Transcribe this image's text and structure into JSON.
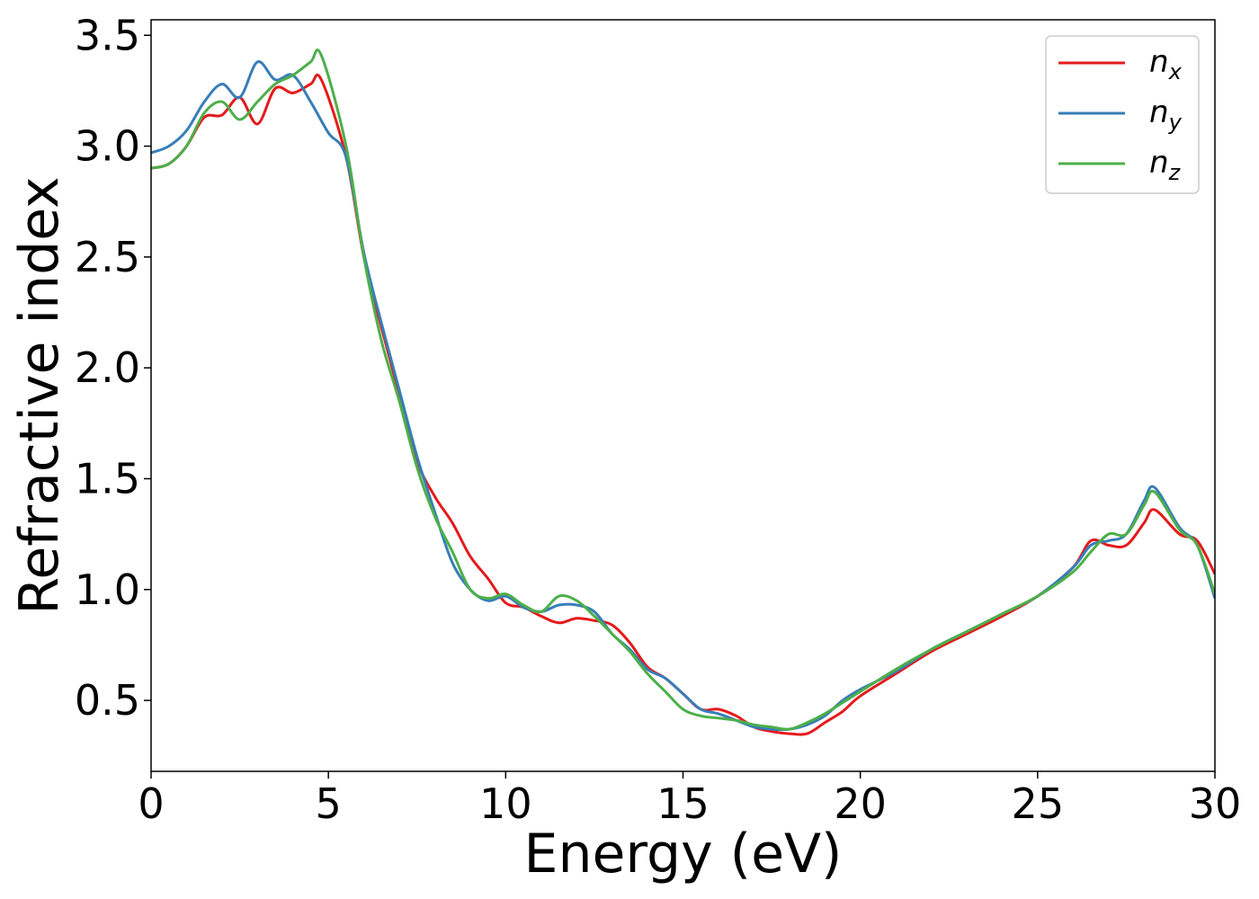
{
  "chart_data": {
    "type": "line",
    "title": "",
    "xlabel": "Energy (eV)",
    "ylabel": "Refractive index",
    "xlim": [
      0,
      30
    ],
    "ylim": [
      0.18,
      3.57
    ],
    "xticks": [
      0,
      5,
      10,
      15,
      20,
      25,
      30
    ],
    "yticks": [
      0.5,
      1.0,
      1.5,
      2.0,
      2.5,
      3.0,
      3.5
    ],
    "xtick_labels": [
      "0",
      "5",
      "10",
      "15",
      "20",
      "25",
      "30"
    ],
    "ytick_labels": [
      "0.5",
      "1.0",
      "1.5",
      "2.0",
      "2.5",
      "3.0",
      "3.5"
    ],
    "grid": false,
    "legend_position": "top-right",
    "series": [
      {
        "name": "n",
        "subscript": "x",
        "color": "#e41a1c",
        "points": [
          [
            0,
            2.9
          ],
          [
            0.5,
            2.92
          ],
          [
            1,
            3.0
          ],
          [
            1.5,
            3.13
          ],
          [
            2,
            3.14
          ],
          [
            2.5,
            3.22
          ],
          [
            3,
            3.1
          ],
          [
            3.5,
            3.26
          ],
          [
            4,
            3.24
          ],
          [
            4.5,
            3.28
          ],
          [
            4.8,
            3.3
          ],
          [
            5.5,
            2.95
          ],
          [
            6,
            2.5
          ],
          [
            6.5,
            2.18
          ],
          [
            7,
            1.88
          ],
          [
            7.5,
            1.58
          ],
          [
            8,
            1.42
          ],
          [
            8.5,
            1.3
          ],
          [
            9,
            1.15
          ],
          [
            9.5,
            1.05
          ],
          [
            10,
            0.94
          ],
          [
            10.5,
            0.92
          ],
          [
            11,
            0.88
          ],
          [
            11.5,
            0.85
          ],
          [
            12,
            0.87
          ],
          [
            12.5,
            0.86
          ],
          [
            13,
            0.84
          ],
          [
            13.5,
            0.76
          ],
          [
            14,
            0.65
          ],
          [
            14.5,
            0.6
          ],
          [
            15,
            0.53
          ],
          [
            15.5,
            0.46
          ],
          [
            16,
            0.46
          ],
          [
            16.5,
            0.43
          ],
          [
            17,
            0.38
          ],
          [
            17.5,
            0.36
          ],
          [
            18,
            0.35
          ],
          [
            18.5,
            0.35
          ],
          [
            19,
            0.4
          ],
          [
            19.5,
            0.45
          ],
          [
            20,
            0.52
          ],
          [
            21,
            0.62
          ],
          [
            22,
            0.72
          ],
          [
            23,
            0.8
          ],
          [
            24,
            0.88
          ],
          [
            25,
            0.97
          ],
          [
            26,
            1.1
          ],
          [
            26.5,
            1.22
          ],
          [
            27,
            1.2
          ],
          [
            27.5,
            1.2
          ],
          [
            28,
            1.3
          ],
          [
            28.3,
            1.36
          ],
          [
            29,
            1.25
          ],
          [
            29.5,
            1.22
          ],
          [
            30,
            1.07
          ]
        ]
      },
      {
        "name": "n",
        "subscript": "y",
        "color": "#377eb8",
        "points": [
          [
            0,
            2.97
          ],
          [
            0.5,
            3.0
          ],
          [
            1,
            3.07
          ],
          [
            1.5,
            3.2
          ],
          [
            2,
            3.28
          ],
          [
            2.5,
            3.22
          ],
          [
            3,
            3.38
          ],
          [
            3.5,
            3.3
          ],
          [
            4,
            3.32
          ],
          [
            4.5,
            3.2
          ],
          [
            5,
            3.06
          ],
          [
            5.5,
            2.95
          ],
          [
            6,
            2.52
          ],
          [
            6.5,
            2.2
          ],
          [
            7,
            1.9
          ],
          [
            7.5,
            1.6
          ],
          [
            8,
            1.35
          ],
          [
            8.5,
            1.12
          ],
          [
            9,
            1.0
          ],
          [
            9.5,
            0.95
          ],
          [
            10,
            0.97
          ],
          [
            10.5,
            0.92
          ],
          [
            11,
            0.9
          ],
          [
            11.5,
            0.93
          ],
          [
            12,
            0.93
          ],
          [
            12.5,
            0.9
          ],
          [
            13,
            0.8
          ],
          [
            13.5,
            0.73
          ],
          [
            14,
            0.64
          ],
          [
            14.5,
            0.6
          ],
          [
            15,
            0.53
          ],
          [
            15.5,
            0.46
          ],
          [
            16,
            0.44
          ],
          [
            16.5,
            0.41
          ],
          [
            17,
            0.38
          ],
          [
            17.5,
            0.37
          ],
          [
            18,
            0.37
          ],
          [
            18.5,
            0.39
          ],
          [
            19,
            0.43
          ],
          [
            19.5,
            0.5
          ],
          [
            20,
            0.55
          ],
          [
            21,
            0.63
          ],
          [
            22,
            0.73
          ],
          [
            23,
            0.81
          ],
          [
            24,
            0.89
          ],
          [
            25,
            0.97
          ],
          [
            26,
            1.1
          ],
          [
            26.5,
            1.2
          ],
          [
            27,
            1.22
          ],
          [
            27.5,
            1.25
          ],
          [
            28,
            1.4
          ],
          [
            28.3,
            1.46
          ],
          [
            29,
            1.28
          ],
          [
            29.5,
            1.2
          ],
          [
            30,
            0.96
          ]
        ]
      },
      {
        "name": "n",
        "subscript": "z",
        "color": "#4daf4a",
        "points": [
          [
            0,
            2.9
          ],
          [
            0.5,
            2.92
          ],
          [
            1,
            3.0
          ],
          [
            1.5,
            3.15
          ],
          [
            2,
            3.2
          ],
          [
            2.5,
            3.12
          ],
          [
            3,
            3.2
          ],
          [
            3.5,
            3.28
          ],
          [
            4,
            3.32
          ],
          [
            4.5,
            3.38
          ],
          [
            4.8,
            3.41
          ],
          [
            5.5,
            3.0
          ],
          [
            6,
            2.5
          ],
          [
            6.5,
            2.12
          ],
          [
            7,
            1.85
          ],
          [
            7.5,
            1.55
          ],
          [
            8,
            1.33
          ],
          [
            8.5,
            1.17
          ],
          [
            9,
            1.0
          ],
          [
            9.5,
            0.96
          ],
          [
            10,
            0.98
          ],
          [
            10.5,
            0.93
          ],
          [
            11,
            0.9
          ],
          [
            11.5,
            0.97
          ],
          [
            12,
            0.95
          ],
          [
            12.5,
            0.88
          ],
          [
            13,
            0.8
          ],
          [
            13.5,
            0.72
          ],
          [
            14,
            0.62
          ],
          [
            14.5,
            0.54
          ],
          [
            15,
            0.46
          ],
          [
            15.5,
            0.43
          ],
          [
            16,
            0.42
          ],
          [
            16.5,
            0.41
          ],
          [
            17,
            0.39
          ],
          [
            17.5,
            0.38
          ],
          [
            18,
            0.37
          ],
          [
            18.5,
            0.4
          ],
          [
            19,
            0.44
          ],
          [
            19.5,
            0.49
          ],
          [
            20,
            0.54
          ],
          [
            21,
            0.64
          ],
          [
            22,
            0.73
          ],
          [
            23,
            0.81
          ],
          [
            24,
            0.89
          ],
          [
            25,
            0.97
          ],
          [
            26,
            1.08
          ],
          [
            26.5,
            1.17
          ],
          [
            27,
            1.25
          ],
          [
            27.5,
            1.25
          ],
          [
            28,
            1.38
          ],
          [
            28.3,
            1.44
          ],
          [
            29,
            1.27
          ],
          [
            29.5,
            1.2
          ],
          [
            30,
            0.98
          ]
        ]
      }
    ]
  }
}
